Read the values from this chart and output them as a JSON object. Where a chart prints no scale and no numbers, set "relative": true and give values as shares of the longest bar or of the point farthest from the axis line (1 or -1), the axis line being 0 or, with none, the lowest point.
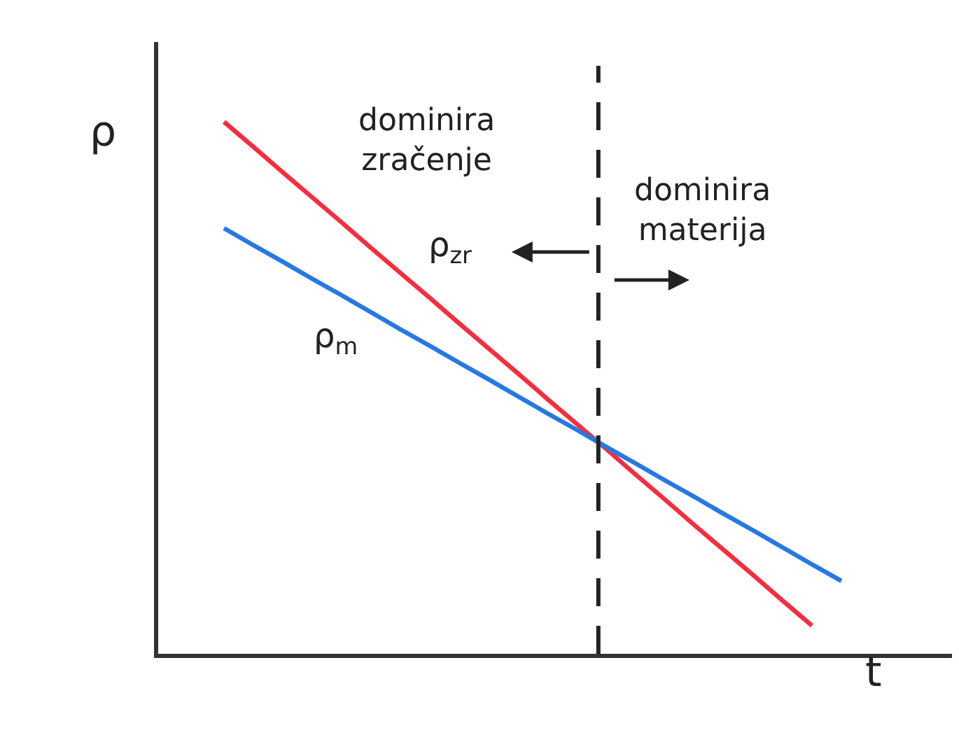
{
  "chart_data": {
    "type": "line",
    "relative": true,
    "xlabel": "t",
    "ylabel": "ρ",
    "categories": [
      null,
      null,
      null,
      null,
      null,
      null,
      null,
      null,
      null,
      null,
      null,
      null,
      null,
      null,
      null,
      null,
      null,
      null,
      null,
      null,
      null,
      null
    ],
    "series": [
      {
        "name": "ρ$_{zr}$",
        "color": "#f03040",
        "values": [
          1.0,
          0.953,
          0.905,
          0.858,
          0.811,
          0.763,
          0.716,
          0.669,
          0.621,
          0.574,
          0.527,
          0.479,
          0.432,
          0.385,
          0.337,
          0.29,
          0.242,
          0.195,
          0.148,
          0.1,
          0.053,
          null
        ]
      },
      {
        "name": "ρ$_{m}$",
        "color": "#2878e0",
        "values": [
          0.8,
          0.768,
          0.737,
          0.705,
          0.674,
          0.642,
          0.61,
          0.579,
          0.547,
          0.516,
          0.484,
          0.452,
          0.421,
          0.389,
          0.358,
          0.326,
          0.295,
          0.263,
          0.232,
          0.2,
          0.168,
          0.137
        ]
      }
    ],
    "annotations": [
      "dominira\nzračenje",
      "dominira\nmaterija"
    ],
    "marker": "none",
    "line_style": "solid"
  }
}
